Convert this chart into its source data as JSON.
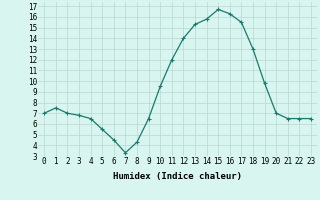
{
  "x": [
    0,
    1,
    2,
    3,
    4,
    5,
    6,
    7,
    8,
    9,
    10,
    11,
    12,
    13,
    14,
    15,
    16,
    17,
    18,
    19,
    20,
    21,
    22,
    23
  ],
  "y": [
    7,
    7.5,
    7,
    6.8,
    6.5,
    5.5,
    4.5,
    3.3,
    4.3,
    6.5,
    9.5,
    12,
    14,
    15.3,
    15.8,
    16.7,
    16.3,
    15.5,
    13,
    9.8,
    7,
    6.5,
    6.5,
    6.5
  ],
  "line_color": "#1a7a6e",
  "marker": "+",
  "marker_size": 3,
  "bg_color": "#d8f5f0",
  "grid_color": "#b8d8d4",
  "xlabel": "Humidex (Indice chaleur)",
  "xlim": [
    -0.5,
    23.5
  ],
  "ylim": [
    3,
    17.4
  ],
  "yticks": [
    3,
    4,
    5,
    6,
    7,
    8,
    9,
    10,
    11,
    12,
    13,
    14,
    15,
    16,
    17
  ],
  "xticks": [
    0,
    1,
    2,
    3,
    4,
    5,
    6,
    7,
    8,
    9,
    10,
    11,
    12,
    13,
    14,
    15,
    16,
    17,
    18,
    19,
    20,
    21,
    22,
    23
  ],
  "xlabel_fontsize": 6.5,
  "tick_fontsize": 5.5,
  "line_width": 0.9,
  "marker_edge_width": 0.8
}
